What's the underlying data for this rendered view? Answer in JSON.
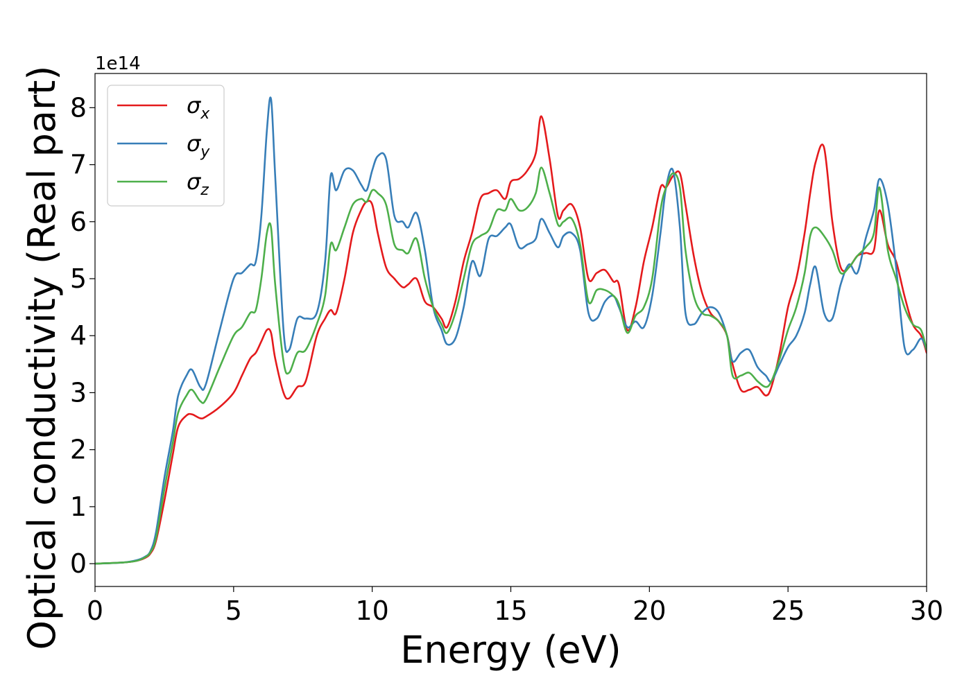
{
  "chart_data": {
    "type": "line",
    "title": "",
    "xlabel": "Energy (eV)",
    "ylabel": "Optical conductivity (Real part)",
    "y_offset_label": "1e14",
    "xlim": [
      0,
      30
    ],
    "ylim": [
      -0.4,
      8.6
    ],
    "xticks": [
      0,
      5,
      10,
      15,
      20,
      25,
      30
    ],
    "yticks": [
      0,
      1,
      2,
      3,
      4,
      5,
      6,
      7,
      8
    ],
    "grid": false,
    "legend_position": "top-left",
    "x": [
      0,
      1,
      1.5,
      1.8,
      2.0,
      2.2,
      2.5,
      2.8,
      3.0,
      3.3,
      3.5,
      3.8,
      4.0,
      4.5,
      5.0,
      5.3,
      5.6,
      5.8,
      6.0,
      6.2,
      6.35,
      6.5,
      6.8,
      7.0,
      7.3,
      7.6,
      8.0,
      8.3,
      8.5,
      8.7,
      9.0,
      9.3,
      9.6,
      9.8,
      10.0,
      10.2,
      10.5,
      10.8,
      11.1,
      11.3,
      11.6,
      11.9,
      12.2,
      12.5,
      12.7,
      13.0,
      13.3,
      13.6,
      13.9,
      14.2,
      14.5,
      14.8,
      15.0,
      15.3,
      15.6,
      15.9,
      16.1,
      16.4,
      16.7,
      16.9,
      17.2,
      17.5,
      17.8,
      18.1,
      18.4,
      18.7,
      18.9,
      19.2,
      19.5,
      19.8,
      20.1,
      20.4,
      20.6,
      20.85,
      21.1,
      21.3,
      21.6,
      21.9,
      22.2,
      22.5,
      22.8,
      23.0,
      23.3,
      23.6,
      23.9,
      24.2,
      24.4,
      24.7,
      25.0,
      25.3,
      25.6,
      25.8,
      26.0,
      26.3,
      26.6,
      26.9,
      27.2,
      27.5,
      27.8,
      28.1,
      28.3,
      28.6,
      28.9,
      29.2,
      29.5,
      29.8,
      30.0
    ],
    "series": [
      {
        "name": "σx",
        "name_base": "σ",
        "name_sub": "x",
        "color": "#e41a1c",
        "values": [
          0.0,
          0.02,
          0.05,
          0.1,
          0.18,
          0.4,
          1.1,
          1.9,
          2.4,
          2.6,
          2.62,
          2.55,
          2.58,
          2.75,
          3.0,
          3.3,
          3.6,
          3.7,
          3.9,
          4.1,
          4.05,
          3.6,
          3.0,
          2.9,
          3.1,
          3.2,
          4.0,
          4.3,
          4.45,
          4.4,
          5.0,
          5.8,
          6.2,
          6.35,
          6.3,
          5.8,
          5.2,
          5.0,
          4.85,
          4.9,
          5.0,
          4.6,
          4.5,
          4.3,
          4.15,
          4.6,
          5.3,
          5.8,
          6.4,
          6.5,
          6.55,
          6.4,
          6.7,
          6.75,
          6.9,
          7.2,
          7.85,
          7.1,
          6.1,
          6.2,
          6.3,
          5.9,
          5.0,
          5.1,
          5.15,
          4.95,
          4.9,
          4.1,
          4.5,
          5.3,
          5.9,
          6.6,
          6.6,
          6.8,
          6.85,
          6.3,
          5.4,
          4.75,
          4.4,
          4.25,
          4.0,
          3.5,
          3.05,
          3.05,
          3.1,
          2.95,
          3.1,
          3.7,
          4.5,
          5.0,
          5.8,
          6.5,
          7.05,
          7.3,
          6.0,
          5.2,
          5.2,
          5.4,
          5.45,
          5.5,
          6.2,
          5.6,
          5.3,
          4.7,
          4.2,
          4.0,
          3.7
        ]
      },
      {
        "name": "σy",
        "name_base": "σ",
        "name_sub": "y",
        "color": "#377eb8",
        "values": [
          0.0,
          0.02,
          0.06,
          0.12,
          0.22,
          0.55,
          1.5,
          2.3,
          2.95,
          3.3,
          3.4,
          3.1,
          3.15,
          4.1,
          5.0,
          5.1,
          5.25,
          5.3,
          6.1,
          7.6,
          8.15,
          6.8,
          4.1,
          3.75,
          4.3,
          4.3,
          4.4,
          5.3,
          6.8,
          6.55,
          6.9,
          6.9,
          6.65,
          6.55,
          6.9,
          7.15,
          7.1,
          6.1,
          6.0,
          5.9,
          6.15,
          5.5,
          4.5,
          4.1,
          3.85,
          3.95,
          4.5,
          5.3,
          5.05,
          5.7,
          5.75,
          5.9,
          5.95,
          5.55,
          5.6,
          5.7,
          6.05,
          5.8,
          5.55,
          5.75,
          5.8,
          5.5,
          4.4,
          4.3,
          4.6,
          4.7,
          4.5,
          4.15,
          4.25,
          4.15,
          4.7,
          5.8,
          6.6,
          6.9,
          5.9,
          4.4,
          4.2,
          4.4,
          4.5,
          4.4,
          4.0,
          3.55,
          3.7,
          3.75,
          3.45,
          3.3,
          3.2,
          3.5,
          3.8,
          4.0,
          4.4,
          4.9,
          5.2,
          4.4,
          4.3,
          4.9,
          5.25,
          5.1,
          5.7,
          6.2,
          6.75,
          6.3,
          5.2,
          3.8,
          3.75,
          3.95,
          3.75
        ]
      },
      {
        "name": "σz",
        "name_base": "σ",
        "name_sub": "z",
        "color": "#4daf4a",
        "values": [
          0.0,
          0.02,
          0.05,
          0.11,
          0.2,
          0.45,
          1.3,
          2.1,
          2.65,
          2.95,
          3.05,
          2.85,
          2.88,
          3.45,
          4.0,
          4.15,
          4.4,
          4.45,
          5.0,
          5.8,
          5.9,
          4.9,
          3.55,
          3.35,
          3.7,
          3.75,
          4.2,
          4.7,
          5.6,
          5.5,
          5.9,
          6.3,
          6.4,
          6.35,
          6.55,
          6.5,
          6.3,
          5.6,
          5.5,
          5.45,
          5.7,
          5.0,
          4.5,
          4.2,
          4.05,
          4.4,
          5.0,
          5.6,
          5.75,
          5.85,
          6.2,
          6.2,
          6.4,
          6.2,
          6.25,
          6.5,
          6.95,
          6.5,
          5.95,
          6.0,
          6.05,
          5.6,
          4.6,
          4.8,
          4.8,
          4.7,
          4.55,
          4.05,
          4.35,
          4.5,
          5.0,
          6.2,
          6.6,
          6.85,
          6.6,
          5.5,
          4.7,
          4.4,
          4.35,
          4.25,
          4.0,
          3.3,
          3.3,
          3.35,
          3.2,
          3.1,
          3.2,
          3.6,
          4.1,
          4.5,
          5.1,
          5.75,
          5.9,
          5.75,
          5.5,
          5.1,
          5.2,
          5.4,
          5.55,
          5.8,
          6.6,
          5.5,
          5.0,
          4.5,
          4.2,
          4.1,
          3.75
        ]
      }
    ]
  }
}
